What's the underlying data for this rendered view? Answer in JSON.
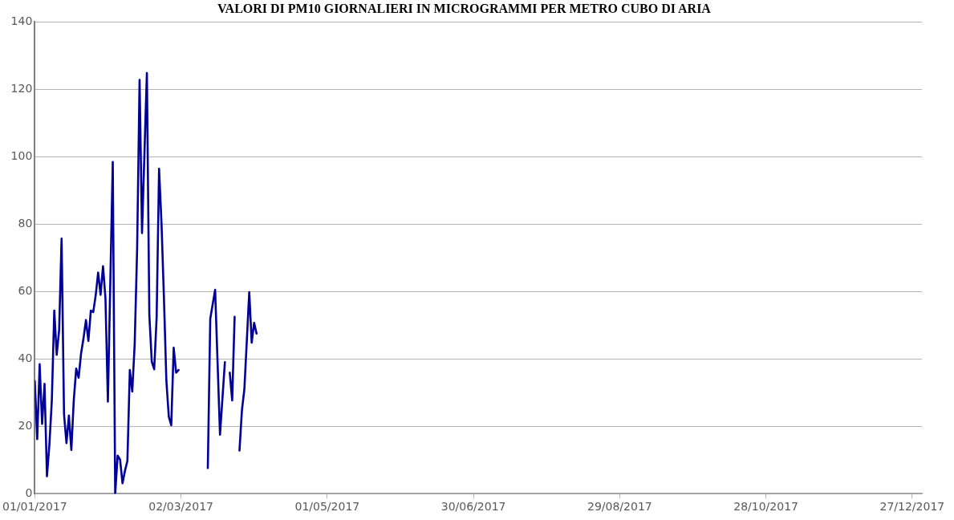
{
  "chart_data": {
    "type": "line",
    "title": "VALORI DI PM10 GIORNALIERI IN MICROGRAMMI PER METRO CUBO DI ARIA",
    "x": [
      "2017-01-01",
      "2017-01-02",
      "2017-01-03",
      "2017-01-04",
      "2017-01-05",
      "2017-01-06",
      "2017-01-07",
      "2017-01-08",
      "2017-01-09",
      "2017-01-10",
      "2017-01-11",
      "2017-01-12",
      "2017-01-13",
      "2017-01-14",
      "2017-01-15",
      "2017-01-16",
      "2017-01-17",
      "2017-01-18",
      "2017-01-19",
      "2017-01-20",
      "2017-01-21",
      "2017-01-22",
      "2017-01-23",
      "2017-01-24",
      "2017-01-25",
      "2017-01-26",
      "2017-01-27",
      "2017-01-28",
      "2017-01-29",
      "2017-01-30",
      "2017-01-31",
      "2017-02-01",
      "2017-02-02",
      "2017-02-03",
      "2017-02-04",
      "2017-02-05",
      "2017-02-06",
      "2017-02-07",
      "2017-02-08",
      "2017-02-09",
      "2017-02-10",
      "2017-02-11",
      "2017-02-12",
      "2017-02-13",
      "2017-02-14",
      "2017-02-15",
      "2017-02-16",
      "2017-02-17",
      "2017-02-18",
      "2017-02-19",
      "2017-02-20",
      "2017-02-21",
      "2017-02-22",
      "2017-02-23",
      "2017-02-24",
      "2017-02-25",
      "2017-02-26",
      "2017-02-27",
      "2017-02-28",
      "2017-03-01",
      "2017-03-02",
      "2017-03-13",
      "2017-03-14",
      "2017-03-16",
      "2017-03-18",
      "2017-03-20",
      "2017-03-21",
      "2017-03-22",
      "2017-03-23",
      "2017-03-24",
      "2017-03-25",
      "2017-03-26",
      "2017-03-27",
      "2017-03-28",
      "2017-03-30",
      "2017-03-31",
      "2017-04-01",
      "2017-04-02"
    ],
    "series": [
      {
        "color": "#000099",
        "values": [
          33.4,
          16.2,
          38.4,
          20.7,
          32.6,
          5.2,
          14.6,
          27.7,
          54.3,
          41.2,
          48.6,
          75.7,
          23.6,
          15,
          23.2,
          13,
          27.7,
          37.1,
          34.4,
          41.6,
          46.1,
          51.5,
          45.3,
          54.3,
          53.9,
          58.9,
          65.6,
          59,
          67.5,
          58,
          27.3,
          63,
          98.4,
          0,
          11.3,
          10.1,
          3.1,
          6.8,
          9.7,
          36.7,
          30.3,
          44.5,
          72.8,
          122.8,
          77.3,
          101,
          124.8,
          53.1,
          39.2,
          36.9,
          52.3,
          96.4,
          80.2,
          58,
          33.4,
          22.8,
          20.3,
          43.3,
          35.9,
          36.7,
          null,
          7.6,
          51.9,
          60.5,
          17.5,
          39,
          null,
          35.9,
          27.7,
          52.5,
          null,
          12.8,
          24.8,
          31,
          59.8,
          44.8,
          50.7,
          47.5
        ]
      }
    ],
    "xlim": [
      "2017-01-01",
      "2017-12-31"
    ],
    "xticks": [
      {
        "value": "2017-01-01",
        "label": "01/01/2017"
      },
      {
        "value": "2017-03-02",
        "label": "02/03/2017"
      },
      {
        "value": "2017-05-01",
        "label": "01/05/2017"
      },
      {
        "value": "2017-06-30",
        "label": "30/06/2017"
      },
      {
        "value": "2017-08-29",
        "label": "29/08/2017"
      },
      {
        "value": "2017-10-28",
        "label": "28/10/2017"
      },
      {
        "value": "2017-12-27",
        "label": "27/12/2017"
      }
    ],
    "ylim": [
      0,
      140
    ],
    "yticks": [
      0,
      20,
      40,
      60,
      80,
      100,
      120,
      140
    ],
    "grid": "y",
    "marker": "none",
    "line_style": "solid"
  }
}
